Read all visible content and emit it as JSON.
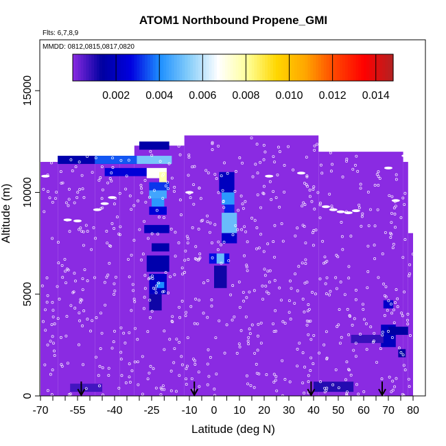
{
  "chart_data": {
    "type": "heatmap",
    "title": "ATOM1 Northbound Propene_GMI",
    "flights_label": "Flts: 6,7,8,9",
    "dates_label": "MMDD: 0812,0815,0817,0820",
    "xlabel": "Latitude (deg N)",
    "ylabel": "Altitude (m)",
    "xlim": [
      -70,
      82
    ],
    "ylim": [
      0,
      17500
    ],
    "x_ticks": [
      -70,
      -55,
      -40,
      -25,
      -10,
      0,
      10,
      20,
      30,
      40,
      50,
      60,
      70,
      80
    ],
    "x_tick_labels": [
      "-70",
      "-55",
      "-40",
      "-25",
      "-10",
      "0",
      "10",
      "20",
      "30",
      "40",
      "50",
      "60",
      "70",
      "80"
    ],
    "x_minor_ticks": [
      -65,
      -60,
      -50,
      -45,
      -35,
      -30,
      -20,
      -15,
      -5,
      5,
      15,
      25,
      35,
      45,
      55,
      65,
      75
    ],
    "y_ticks": [
      0,
      5000,
      10000,
      15000
    ],
    "y_tick_labels": [
      "0",
      "5000",
      "10000",
      "15000"
    ],
    "colorbar": {
      "range": [
        0,
        0.0148
      ],
      "ticks": [
        0.002,
        0.004,
        0.006,
        0.008,
        0.01,
        0.012,
        0.014
      ],
      "tick_labels": [
        "0.002",
        "0.004",
        "0.006",
        "0.008",
        "0.010",
        "0.012",
        "0.014"
      ],
      "colors": [
        "#8a2be2",
        "#0000a0",
        "#0000e0",
        "#1e90ff",
        "#87cefa",
        "#ffffff",
        "#ffff99",
        "#ffd700",
        "#ffa500",
        "#ff4500",
        "#ff0000",
        "#b22222"
      ]
    },
    "background_value": 0.0,
    "background_color": "#8a2be2",
    "domain_extents": [
      {
        "x": [
          -70,
          -63
        ],
        "y": [
          0,
          11500
        ]
      },
      {
        "x": [
          -63,
          -48
        ],
        "y": [
          0,
          11800
        ]
      },
      {
        "x": [
          -48,
          -38
        ],
        "y": [
          0,
          11800
        ]
      },
      {
        "x": [
          -38,
          -32
        ],
        "y": [
          0,
          11800
        ]
      },
      {
        "x": [
          -32,
          -12
        ],
        "y": [
          0,
          12300
        ]
      },
      {
        "x": [
          -12,
          42
        ],
        "y": [
          0,
          12800
        ]
      },
      {
        "x": [
          42,
          60
        ],
        "y": [
          0,
          12000
        ]
      },
      {
        "x": [
          60,
          76
        ],
        "y": [
          0,
          12000
        ]
      },
      {
        "x": [
          76,
          78
        ],
        "y": [
          0,
          11500
        ]
      },
      {
        "x": [
          78,
          80
        ],
        "y": [
          0,
          8000
        ]
      }
    ],
    "cells": [
      {
        "x": [
          -63,
          -27
        ],
        "y": [
          11400,
          11800
        ],
        "v": 0.0016
      },
      {
        "x": [
          -48,
          -29
        ],
        "y": [
          11400,
          11800
        ],
        "v": 0.0035
      },
      {
        "x": [
          -31,
          -17
        ],
        "y": [
          11400,
          11800
        ],
        "v": 0.0052
      },
      {
        "x": [
          -30,
          -18
        ],
        "y": [
          12100,
          12500
        ],
        "v": 0.0015
      },
      {
        "x": [
          -44,
          -27
        ],
        "y": [
          10800,
          11200
        ],
        "v": 0.0025
      },
      {
        "x": [
          -27,
          -19
        ],
        "y": [
          10700,
          11200
        ],
        "v": 0.0068
      },
      {
        "x": [
          -22,
          -19
        ],
        "y": [
          10500,
          11000
        ],
        "v": 0.0078
      },
      {
        "x": [
          -26,
          -18
        ],
        "y": [
          10100,
          10500
        ],
        "v": 0.0032
      },
      {
        "x": [
          -26,
          -19
        ],
        "y": [
          9700,
          10100
        ],
        "v": 0.0045
      },
      {
        "x": [
          -25,
          -20
        ],
        "y": [
          9300,
          9700
        ],
        "v": 0.0042
      },
      {
        "x": [
          -26,
          -19
        ],
        "y": [
          8900,
          9300
        ],
        "v": 0.0025
      },
      {
        "x": [
          -28,
          -18
        ],
        "y": [
          8000,
          8400
        ],
        "v": 0.0018
      },
      {
        "x": [
          -25,
          -18
        ],
        "y": [
          7100,
          7500
        ],
        "v": 0.0016
      },
      {
        "x": [
          -27,
          -18
        ],
        "y": [
          6100,
          6900
        ],
        "v": 0.0016
      },
      {
        "x": [
          -26,
          -19
        ],
        "y": [
          5000,
          6000
        ],
        "v": 0.0021
      },
      {
        "x": [
          -23,
          -20
        ],
        "y": [
          5300,
          5600
        ],
        "v": 0.004
      },
      {
        "x": [
          -26,
          -21
        ],
        "y": [
          4200,
          5000
        ],
        "v": 0.0012
      },
      {
        "x": [
          2,
          8
        ],
        "y": [
          10000,
          11000
        ],
        "v": 0.002
      },
      {
        "x": [
          3,
          8
        ],
        "y": [
          9400,
          10000
        ],
        "v": 0.0042
      },
      {
        "x": [
          4,
          8
        ],
        "y": [
          9000,
          9400
        ],
        "v": 0.003
      },
      {
        "x": [
          3,
          9
        ],
        "y": [
          8000,
          9000
        ],
        "v": 0.005
      },
      {
        "x": [
          3,
          9
        ],
        "y": [
          7500,
          8000
        ],
        "v": 0.0022
      },
      {
        "x": [
          -2,
          6
        ],
        "y": [
          6500,
          7000
        ],
        "v": 0.0028
      },
      {
        "x": [
          1,
          4
        ],
        "y": [
          6500,
          7000
        ],
        "v": 0.005
      },
      {
        "x": [
          0,
          5
        ],
        "y": [
          5300,
          6400
        ],
        "v": 0.0012
      },
      {
        "x": [
          68,
          72
        ],
        "y": [
          4300,
          4700
        ],
        "v": 0.0022
      },
      {
        "x": [
          67,
          73
        ],
        "y": [
          2400,
          3500
        ],
        "v": 0.002
      },
      {
        "x": [
          74,
          77
        ],
        "y": [
          1900,
          2300
        ],
        "v": 0.0014
      },
      {
        "x": [
          70,
          78
        ],
        "y": [
          3000,
          3400
        ],
        "v": 0.0014
      },
      {
        "x": [
          55,
          68
        ],
        "y": [
          2600,
          3000
        ],
        "v": 0.0008
      },
      {
        "x": [
          40,
          56
        ],
        "y": [
          200,
          700
        ],
        "v": 0.001
      },
      {
        "x": [
          -58,
          -45
        ],
        "y": [
          200,
          600
        ],
        "v": 0.0007
      }
    ],
    "flight_tracks": [
      {
        "x": -47.0,
        "y": 9150
      },
      {
        "x": -44.0,
        "y": 9450
      },
      {
        "x": -41.0,
        "y": 9750
      },
      {
        "x": 54.0,
        "y": 9000
      },
      {
        "x": 57.0,
        "y": 9100
      },
      {
        "x": 48.0,
        "y": 9150
      },
      {
        "x": 45.0,
        "y": 9300
      },
      {
        "x": 51.0,
        "y": 9050
      },
      {
        "x": -10.0,
        "y": 10000
      },
      {
        "x": 22.0,
        "y": 10800
      },
      {
        "x": 35.0,
        "y": 10950
      },
      {
        "x": 70.0,
        "y": 11200
      },
      {
        "x": 77.0,
        "y": 11800
      },
      {
        "x": -68.0,
        "y": 10800
      },
      {
        "x": -59.0,
        "y": 8650
      },
      {
        "x": -55.0,
        "y": 8600
      },
      {
        "x": 73.0,
        "y": 9600
      }
    ],
    "arrows_latitudes": [
      -53.5,
      -8,
      39,
      67.5
    ]
  }
}
